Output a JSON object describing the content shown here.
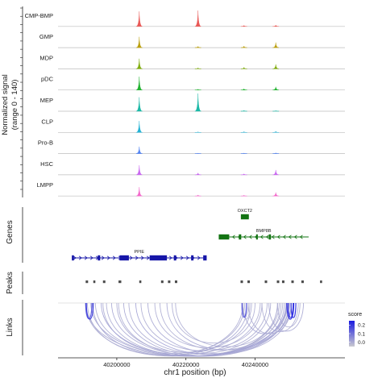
{
  "chart_data": {
    "type": "area",
    "genome_track": true,
    "x_axis": {
      "label": "chr1 position (bp)",
      "range": [
        40183000,
        40266000
      ],
      "ticks": [
        40200000,
        40220000,
        40240000
      ],
      "tick_labels": [
        "40200000",
        "40220000",
        "40240000"
      ]
    },
    "coverage": {
      "ylabel_line1": "Normalized signal",
      "ylabel_line2": "(range 0 - 140)",
      "ylim": [
        0,
        140
      ],
      "peak_positions": [
        40206500,
        40223500,
        40236800,
        40246000
      ],
      "series": [
        {
          "name": "CMP-BMP",
          "color": "#e8504e",
          "peaks": [
            118,
            125,
            8,
            10
          ]
        },
        {
          "name": "GMP",
          "color": "#b79b00",
          "peaks": [
            85,
            10,
            12,
            40
          ]
        },
        {
          "name": "MDP",
          "color": "#7aa900",
          "peaks": [
            80,
            8,
            12,
            35
          ]
        },
        {
          "name": "pDC",
          "color": "#15b025",
          "peaks": [
            105,
            6,
            10,
            25
          ]
        },
        {
          "name": "MEP",
          "color": "#10b5a2",
          "peaks": [
            110,
            140,
            6,
            5
          ]
        },
        {
          "name": "CLP",
          "color": "#17aed2",
          "peaks": [
            90,
            4,
            6,
            8
          ]
        },
        {
          "name": "Pro-B",
          "color": "#4a7df2",
          "peaks": [
            55,
            3,
            4,
            6
          ]
        },
        {
          "name": "HSC",
          "color": "#c65ff0",
          "peaks": [
            75,
            15,
            8,
            38
          ]
        },
        {
          "name": "LMPP",
          "color": "#f25fc8",
          "peaks": [
            70,
            8,
            6,
            28
          ]
        }
      ]
    },
    "genes": {
      "track_label": "Genes",
      "items": [
        {
          "name": "OXCT2",
          "start": 40235900,
          "end": 40238200,
          "strand": "+",
          "color": "#137413",
          "row": 0,
          "exons": [
            [
              40235900,
              40238200
            ]
          ]
        },
        {
          "name": "BMP8B",
          "start": 40229500,
          "end": 40255500,
          "strand": "-",
          "color": "#137413",
          "row": 1,
          "exons": [
            [
              40229500,
              40232500
            ],
            [
              40235300,
              40236000
            ],
            [
              40240300,
              40240800
            ],
            [
              40244000,
              40244600
            ]
          ]
        },
        {
          "name": "PPIE",
          "start": 40187000,
          "end": 40226000,
          "strand": "+",
          "color": "#1616a8",
          "row": 2,
          "exons": [
            [
              40187000,
              40187600
            ],
            [
              40194500,
              40195200
            ],
            [
              40200800,
              40203500
            ],
            [
              40209500,
              40214500
            ],
            [
              40216500,
              40217200
            ],
            [
              40221500,
              40222200
            ],
            [
              40225000,
              40226000
            ]
          ]
        }
      ]
    },
    "peaks": {
      "track_label": "Peaks",
      "intervals": [
        [
          40191000,
          40191700
        ],
        [
          40193200,
          40193800
        ],
        [
          40196000,
          40196700
        ],
        [
          40200500,
          40201300
        ],
        [
          40206500,
          40207100
        ],
        [
          40212800,
          40213500
        ],
        [
          40214800,
          40215500
        ],
        [
          40216800,
          40217500
        ],
        [
          40235800,
          40236500
        ],
        [
          40237800,
          40238500
        ],
        [
          40242800,
          40243500
        ],
        [
          40246300,
          40247000
        ],
        [
          40247800,
          40248500
        ],
        [
          40250500,
          40251200
        ],
        [
          40253400,
          40254100
        ],
        [
          40258800,
          40259400
        ]
      ]
    },
    "links": {
      "track_label": "Links",
      "legend_title": "score",
      "score_ticks": [
        0.2,
        0.1,
        0.0
      ],
      "score_tick_labels": [
        "0.2",
        "0.1",
        "0.0"
      ],
      "score_range": [
        -0.05,
        0.25
      ],
      "color_low": "#c9c9d0",
      "color_high": "#1a1ae0",
      "arcs": [
        {
          "start": 40191000,
          "end": 40249500,
          "score": 0.0
        },
        {
          "start": 40192500,
          "end": 40250500,
          "score": 0.01
        },
        {
          "start": 40193800,
          "end": 40248000,
          "score": 0.0
        },
        {
          "start": 40195500,
          "end": 40249000,
          "score": 0.02
        },
        {
          "start": 40197000,
          "end": 40247000,
          "score": 0.0
        },
        {
          "start": 40198500,
          "end": 40250000,
          "score": 0.01
        },
        {
          "start": 40200500,
          "end": 40246500,
          "score": 0.0
        },
        {
          "start": 40202000,
          "end": 40249800,
          "score": 0.01
        },
        {
          "start": 40203500,
          "end": 40244500,
          "score": 0.0
        },
        {
          "start": 40205500,
          "end": 40248500,
          "score": 0.02
        },
        {
          "start": 40207000,
          "end": 40243500,
          "score": 0.0
        },
        {
          "start": 40209000,
          "end": 40250500,
          "score": 0.01
        },
        {
          "start": 40211000,
          "end": 40242000,
          "score": 0.0
        },
        {
          "start": 40212500,
          "end": 40247500,
          "score": 0.0
        },
        {
          "start": 40214500,
          "end": 40249200,
          "score": 0.01
        },
        {
          "start": 40216000,
          "end": 40240000,
          "score": 0.0
        },
        {
          "start": 40217000,
          "end": 40246500,
          "score": 0.0
        },
        {
          "start": 40191500,
          "end": 40236500,
          "score": 0.0
        },
        {
          "start": 40193000,
          "end": 40238000,
          "score": 0.01
        },
        {
          "start": 40196000,
          "end": 40237000,
          "score": 0.0
        },
        {
          "start": 40200000,
          "end": 40239000,
          "score": 0.0
        },
        {
          "start": 40191000,
          "end": 40241500,
          "score": 0.0
        },
        {
          "start": 40236500,
          "end": 40249000,
          "score": 0.01
        },
        {
          "start": 40238000,
          "end": 40250500,
          "score": 0.0
        },
        {
          "start": 40242000,
          "end": 40252500,
          "score": 0.0
        },
        {
          "start": 40244000,
          "end": 40254000,
          "score": 0.01
        },
        {
          "start": 40246500,
          "end": 40253000,
          "score": 0.0
        },
        {
          "start": 40236500,
          "end": 40238500,
          "score": 0.0
        },
        {
          "start": 40191200,
          "end": 40193200,
          "score": 0.2
        },
        {
          "start": 40191000,
          "end": 40192800,
          "score": 0.15
        },
        {
          "start": 40236200,
          "end": 40237500,
          "score": 0.17
        },
        {
          "start": 40249200,
          "end": 40251200,
          "score": 0.25
        },
        {
          "start": 40249600,
          "end": 40251000,
          "score": 0.2
        },
        {
          "start": 40250400,
          "end": 40251800,
          "score": 0.22
        }
      ]
    }
  }
}
